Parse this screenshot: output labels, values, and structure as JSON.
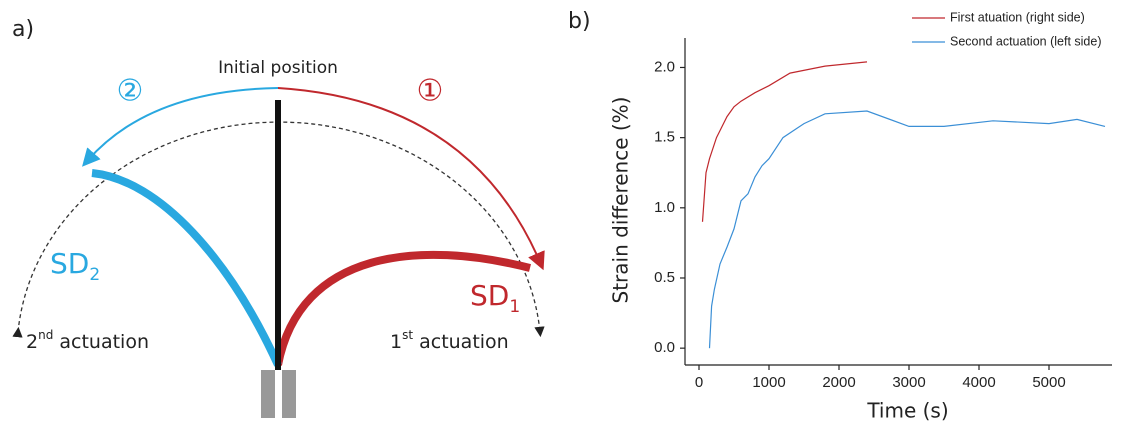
{
  "panel_a": {
    "label": "a)",
    "initial": "Initial position",
    "step1": "①",
    "step2": "②",
    "sd1": {
      "text": "SD",
      "sub": "1"
    },
    "sd2": {
      "text": "SD",
      "sub": "2"
    },
    "act1": {
      "num": "1",
      "sup": "st",
      "text": " actuation"
    },
    "act2": {
      "num": "2",
      "sup": "nd",
      "text": " actuation"
    }
  },
  "chart_data": {
    "type": "line",
    "panel_label": "b)",
    "x_label": "Time (s)",
    "y_label": "Strain difference (%)",
    "xlim": [
      -200,
      5900
    ],
    "ylim": [
      -0.12,
      2.21
    ],
    "xticks": [
      0,
      1000,
      2000,
      3000,
      4000,
      5000
    ],
    "yticks": [
      {
        "value": 0,
        "label": "0.0"
      },
      0.5,
      {
        "value": 1,
        "label": "1.0"
      },
      1.5,
      {
        "value": 2,
        "label": "2.0"
      }
    ],
    "legend": "upper right",
    "series": [
      {
        "name": "First atuation (right side)",
        "color": "#c0282d",
        "x": [
          50,
          100,
          150,
          250,
          300,
          400,
          500,
          600,
          800,
          1000,
          1300,
          1800,
          2400
        ],
        "values": [
          0.9,
          1.25,
          1.35,
          1.5,
          1.55,
          1.65,
          1.72,
          1.76,
          1.82,
          1.87,
          1.96,
          2.01,
          2.04
        ]
      },
      {
        "name": "Second actuation (left side)",
        "color": "#3b8fd6",
        "x": [
          150,
          180,
          220,
          300,
          400,
          500,
          600,
          700,
          800,
          900,
          1000,
          1200,
          1500,
          1800,
          2400,
          3000,
          3500,
          4200,
          5000,
          5400,
          5800
        ],
        "values": [
          0.0,
          0.3,
          0.42,
          0.6,
          0.72,
          0.85,
          1.05,
          1.1,
          1.22,
          1.3,
          1.35,
          1.5,
          1.6,
          1.67,
          1.69,
          1.58,
          1.58,
          1.62,
          1.6,
          1.63,
          1.58
        ]
      }
    ]
  }
}
